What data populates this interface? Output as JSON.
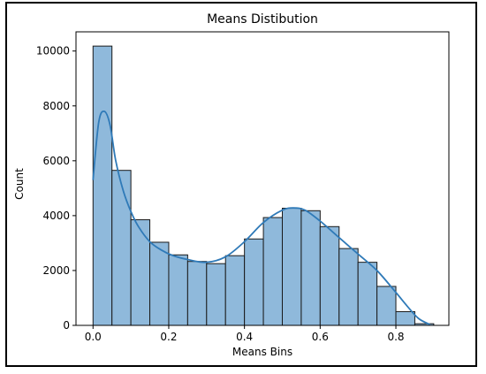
{
  "chart_data": {
    "type": "bar",
    "title": "Means Distibution",
    "xlabel": "Means Bins",
    "ylabel": "Count",
    "xlim": [
      -0.045,
      0.94
    ],
    "ylim": [
      0,
      10700
    ],
    "x_ticks": [
      0.0,
      0.2,
      0.4,
      0.6,
      0.8
    ],
    "x_tick_labels": [
      "0.0",
      "0.2",
      "0.4",
      "0.6",
      "0.8"
    ],
    "y_ticks": [
      0,
      2000,
      4000,
      6000,
      8000,
      10000
    ],
    "y_tick_labels": [
      "0",
      "2000",
      "4000",
      "6000",
      "8000",
      "10000"
    ],
    "bin_edges": [
      0.0,
      0.05,
      0.1,
      0.15,
      0.2,
      0.25,
      0.3,
      0.35,
      0.4,
      0.45,
      0.5,
      0.55,
      0.6,
      0.65,
      0.7,
      0.75,
      0.8,
      0.85,
      0.9
    ],
    "values": [
      10180,
      5650,
      3850,
      3030,
      2570,
      2330,
      2250,
      2540,
      3150,
      3930,
      4270,
      4180,
      3600,
      2800,
      2300,
      1420,
      500,
      60
    ],
    "kde": {
      "x": [
        0.0,
        0.015,
        0.03,
        0.045,
        0.06,
        0.08,
        0.1,
        0.12,
        0.15,
        0.18,
        0.21,
        0.25,
        0.3,
        0.35,
        0.4,
        0.45,
        0.5,
        0.53,
        0.56,
        0.6,
        0.65,
        0.7,
        0.75,
        0.8,
        0.83,
        0.86,
        0.89
      ],
      "y": [
        5300,
        7400,
        7800,
        7300,
        6000,
        4900,
        4150,
        3600,
        3050,
        2750,
        2550,
        2400,
        2300,
        2500,
        3050,
        3750,
        4200,
        4280,
        4200,
        3800,
        3200,
        2600,
        2000,
        1200,
        700,
        250,
        30
      ]
    },
    "colors": {
      "bar_fill": "#8fb9db",
      "bar_edge": "#1a1a1a",
      "kde_line": "#2f7ab8"
    },
    "grid": false,
    "legend": "none"
  }
}
